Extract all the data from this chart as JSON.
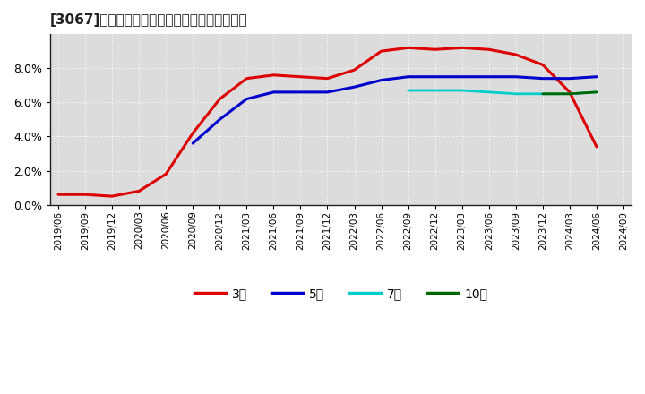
{
  "title": "[3067]　当期純利益マージンの標準偏差の推移",
  "background_color": "#ffffff",
  "plot_bg_color": "#dcdcdc",
  "grid_color": "#ffffff",
  "ylim": [
    0.0,
    0.1
  ],
  "yticks": [
    0.0,
    0.02,
    0.04,
    0.06,
    0.08
  ],
  "series": {
    "3年": {
      "color": "#dd0000",
      "points": [
        [
          "2019/06",
          0.006
        ],
        [
          "2019/09",
          0.006
        ],
        [
          "2019/12",
          0.005
        ],
        [
          "2020/03",
          0.008
        ],
        [
          "2020/06",
          0.018
        ],
        [
          "2020/09",
          0.042
        ],
        [
          "2020/12",
          0.062
        ],
        [
          "2021/03",
          0.074
        ],
        [
          "2021/06",
          0.076
        ],
        [
          "2021/09",
          0.075
        ],
        [
          "2021/12",
          0.074
        ],
        [
          "2022/03",
          0.079
        ],
        [
          "2022/06",
          0.09
        ],
        [
          "2022/09",
          0.092
        ],
        [
          "2022/12",
          0.091
        ],
        [
          "2023/03",
          0.092
        ],
        [
          "2023/06",
          0.091
        ],
        [
          "2023/09",
          0.088
        ],
        [
          "2023/12",
          0.082
        ],
        [
          "2024/03",
          0.066
        ],
        [
          "2024/06",
          0.034
        ]
      ]
    },
    "5年": {
      "color": "#0000cc",
      "points": [
        [
          "2020/09",
          0.036
        ],
        [
          "2020/12",
          0.05
        ],
        [
          "2021/03",
          0.062
        ],
        [
          "2021/06",
          0.066
        ],
        [
          "2021/09",
          0.066
        ],
        [
          "2021/12",
          0.066
        ],
        [
          "2022/03",
          0.069
        ],
        [
          "2022/06",
          0.073
        ],
        [
          "2022/09",
          0.075
        ],
        [
          "2022/12",
          0.075
        ],
        [
          "2023/03",
          0.075
        ],
        [
          "2023/06",
          0.075
        ],
        [
          "2023/09",
          0.075
        ],
        [
          "2023/12",
          0.074
        ],
        [
          "2024/03",
          0.074
        ],
        [
          "2024/06",
          0.075
        ]
      ]
    },
    "7年": {
      "color": "#00cccc",
      "points": [
        [
          "2022/09",
          0.067
        ],
        [
          "2022/12",
          0.067
        ],
        [
          "2023/03",
          0.067
        ],
        [
          "2023/06",
          0.066
        ],
        [
          "2023/09",
          0.065
        ],
        [
          "2023/12",
          0.065
        ],
        [
          "2024/03",
          0.065
        ],
        [
          "2024/06",
          0.066
        ]
      ]
    },
    "10年": {
      "color": "#006600",
      "points": [
        [
          "2023/12",
          0.065
        ],
        [
          "2024/03",
          0.065
        ],
        [
          "2024/06",
          0.066
        ]
      ]
    }
  },
  "xtick_labels": [
    "2019/06",
    "2019/09",
    "2019/12",
    "2020/03",
    "2020/06",
    "2020/09",
    "2020/12",
    "2021/03",
    "2021/06",
    "2021/09",
    "2021/12",
    "2022/03",
    "2022/06",
    "2022/09",
    "2022/12",
    "2023/03",
    "2023/06",
    "2023/09",
    "2023/12",
    "2024/03",
    "2024/06",
    "2024/09"
  ],
  "legend_labels": [
    "3年",
    "5年",
    "7年",
    "10年"
  ],
  "legend_colors": [
    "#dd0000",
    "#0000cc",
    "#00cccc",
    "#006600"
  ]
}
